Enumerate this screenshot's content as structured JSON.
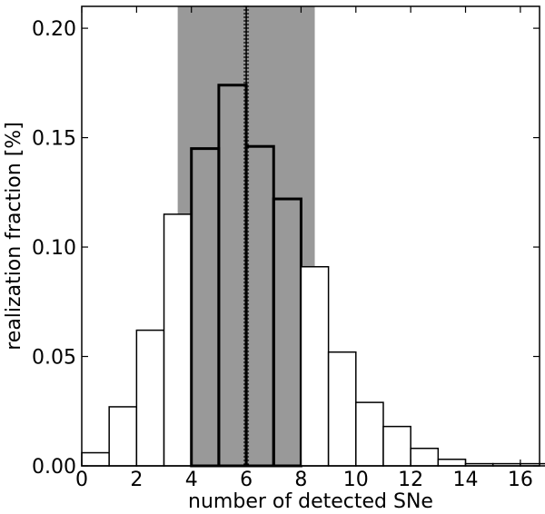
{
  "chart_data": {
    "type": "bar",
    "xlabel": "number of detected SNe",
    "ylabel": "realization fraction [%]",
    "xlim": [
      0,
      16.7
    ],
    "ylim": [
      0,
      0.21
    ],
    "x_ticks": [
      0,
      2,
      4,
      6,
      8,
      10,
      12,
      14,
      16
    ],
    "x_tick_labels": [
      "0",
      "2",
      "4",
      "6",
      "8",
      "10",
      "12",
      "14",
      "16"
    ],
    "y_ticks": [
      0.0,
      0.05,
      0.1,
      0.15,
      0.2
    ],
    "y_tick_labels": [
      "0.00",
      "0.05",
      "0.10",
      "0.15",
      "0.20"
    ],
    "bin_width": 1,
    "bins": [
      0,
      1,
      2,
      3,
      4,
      5,
      6,
      7,
      8,
      9,
      10,
      11,
      12,
      13,
      14,
      15,
      16
    ],
    "values": [
      0.006,
      0.027,
      0.062,
      0.115,
      0.145,
      0.174,
      0.146,
      0.122,
      0.091,
      0.052,
      0.029,
      0.018,
      0.008,
      0.003,
      0.001,
      0.001,
      0.001
    ],
    "thick_bins": [
      4,
      5,
      6,
      7
    ],
    "shaded_band": [
      3.5,
      8.5
    ],
    "median_line": 6,
    "colors": {
      "band": "#999999",
      "bar_fill": "#ffffff",
      "edge": "#000000"
    }
  }
}
